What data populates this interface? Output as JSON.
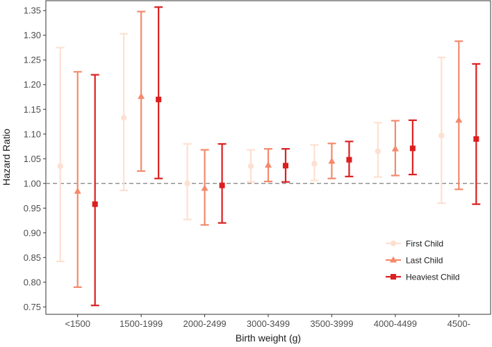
{
  "chart_data": {
    "type": "scatter",
    "subtype": "point-range (estimate with confidence interval)",
    "xlabel": "Birth weight (g)",
    "ylabel": "Hazard Ratio",
    "categories": [
      "<1500",
      "1500-1999",
      "2000-2499",
      "3000-3499",
      "3500-3999",
      "4000-4499",
      "4500-"
    ],
    "ylim": [
      0.735,
      1.37
    ],
    "yticks": [
      0.75,
      0.8,
      0.85,
      0.9,
      0.95,
      1.0,
      1.05,
      1.1,
      1.15,
      1.2,
      1.25,
      1.3,
      1.35
    ],
    "reference_line": {
      "y": 1.0,
      "style": "dashed",
      "color": "#7f7f7f"
    },
    "grid": false,
    "legend_position": "bottom-right",
    "series": [
      {
        "name": "First Child",
        "color": "#fde0d2",
        "marker": "circle",
        "estimate": [
          1.035,
          1.133,
          1.0,
          1.035,
          1.04,
          1.065,
          1.097
        ],
        "lower": [
          0.842,
          0.986,
          0.927,
          1.003,
          1.006,
          1.013,
          0.96
        ],
        "upper": [
          1.275,
          1.303,
          1.08,
          1.068,
          1.078,
          1.123,
          1.255
        ]
      },
      {
        "name": "Last Child",
        "color": "#f4896b",
        "marker": "triangle",
        "estimate": [
          0.984,
          1.176,
          0.99,
          1.037,
          1.045,
          1.07,
          1.128
        ],
        "lower": [
          0.79,
          1.025,
          0.916,
          1.004,
          1.01,
          1.016,
          0.988
        ],
        "upper": [
          1.226,
          1.348,
          1.068,
          1.07,
          1.081,
          1.127,
          1.288
        ]
      },
      {
        "name": "Heaviest Child",
        "color": "#db1f1f",
        "marker": "square",
        "estimate": [
          0.958,
          1.17,
          0.996,
          1.036,
          1.048,
          1.071,
          1.09
        ],
        "lower": [
          0.753,
          1.01,
          0.92,
          1.003,
          1.014,
          1.018,
          0.958
        ],
        "upper": [
          1.22,
          1.357,
          1.08,
          1.07,
          1.085,
          1.128,
          1.242
        ]
      }
    ]
  }
}
